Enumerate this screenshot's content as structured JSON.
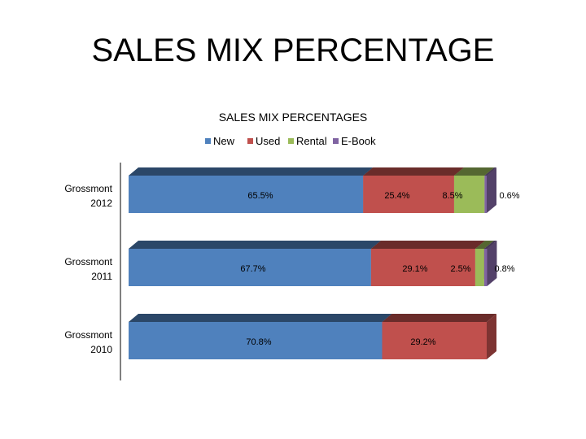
{
  "slide": {
    "title": "SALES MIX PERCENTAGE"
  },
  "colors": {
    "New": "#4F81BD",
    "Used": "#C0504D",
    "Rental": "#9BBB59",
    "E-Book": "#8064A2"
  },
  "chart_data": {
    "type": "bar",
    "orientation": "horizontal",
    "stacked": true,
    "three_d": true,
    "title": "SALES MIX PERCENTAGES",
    "legend_position": "top",
    "categories": [
      "Grossmont 2012",
      "Grossmont 2011",
      "Grossmont 2010"
    ],
    "category_lines": [
      [
        "Grossmont",
        "2012"
      ],
      [
        "Grossmont",
        "2011"
      ],
      [
        "Grossmont",
        "2010"
      ]
    ],
    "series": [
      {
        "name": "New",
        "values": [
          65.5,
          67.7,
          70.8
        ],
        "labels": [
          "65.5%",
          "67.7%",
          "70.8%"
        ]
      },
      {
        "name": "Used",
        "values": [
          25.4,
          29.1,
          29.2
        ],
        "labels": [
          "25.4%",
          "29.1%",
          "29.2%"
        ]
      },
      {
        "name": "Rental",
        "values": [
          8.5,
          2.5,
          0
        ],
        "labels": [
          "8.5%",
          "2.5%",
          ""
        ]
      },
      {
        "name": "E-Book",
        "values": [
          0.6,
          0.8,
          0
        ],
        "labels": [
          "0.6%",
          "0.8%",
          ""
        ]
      }
    ],
    "xlim": [
      0,
      100
    ]
  }
}
